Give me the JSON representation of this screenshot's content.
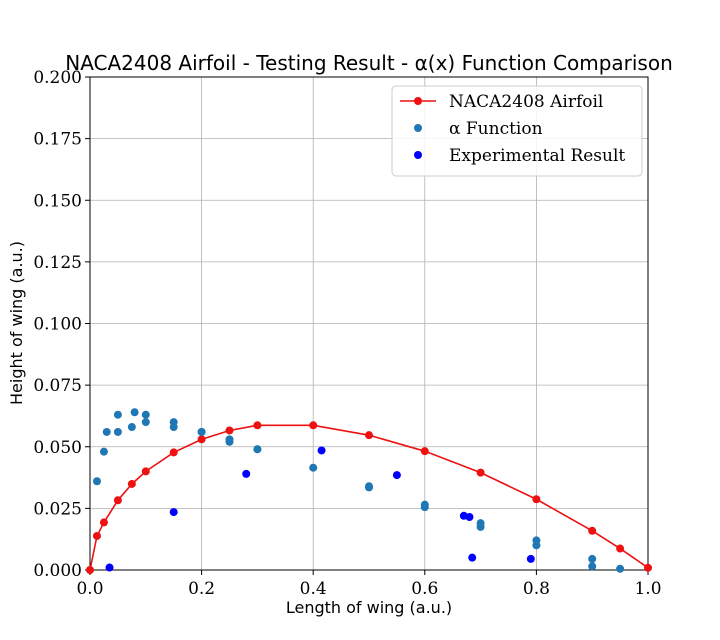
{
  "chart_data": {
    "type": "scatter",
    "title": "NACA2408 Airfoil - Testing Result - α(x) Function Comparison",
    "xlabel": "Length of wing (a.u.)",
    "ylabel": "Height of wing (a.u.)",
    "xlim": [
      0,
      1.0
    ],
    "ylim": [
      0,
      0.2
    ],
    "xticks": [
      "0.0",
      "0.2",
      "0.4",
      "0.6",
      "0.8",
      "1.0"
    ],
    "xtick_values": [
      0,
      0.2,
      0.4,
      0.6,
      0.8,
      1.0
    ],
    "yticks": [
      "0.000",
      "0.025",
      "0.050",
      "0.075",
      "0.100",
      "0.125",
      "0.150",
      "0.175",
      "0.200"
    ],
    "ytick_values": [
      0,
      0.025,
      0.05,
      0.075,
      0.1,
      0.125,
      0.15,
      0.175,
      0.2
    ],
    "grid": true,
    "legend_position": "top-right",
    "series": [
      {
        "name": "NACA2408 Airfoil",
        "type": "line",
        "marker": "circle",
        "color": "#ee1111",
        "x": [
          0,
          0.0125,
          0.025,
          0.05,
          0.075,
          0.1,
          0.15,
          0.2,
          0.25,
          0.3,
          0.4,
          0.5,
          0.6,
          0.7,
          0.8,
          0.9,
          0.95,
          1.0
        ],
        "y": [
          0,
          0.0138,
          0.0193,
          0.0283,
          0.0349,
          0.04,
          0.0477,
          0.053,
          0.0566,
          0.0587,
          0.0587,
          0.0547,
          0.0482,
          0.0395,
          0.0287,
          0.0159,
          0.0087,
          0.0009
        ]
      },
      {
        "name": "α Function",
        "type": "scatter",
        "color": "#1f77b4",
        "x": [
          0.0125,
          0.025,
          0.03,
          0.05,
          0.05,
          0.075,
          0.08,
          0.1,
          0.1,
          0.15,
          0.15,
          0.2,
          0.2,
          0.25,
          0.25,
          0.3,
          0.3,
          0.4,
          0.5,
          0.5,
          0.6,
          0.6,
          0.7,
          0.7,
          0.8,
          0.8,
          0.9,
          0.9,
          0.95
        ],
        "y": [
          0.036,
          0.048,
          0.056,
          0.056,
          0.063,
          0.058,
          0.064,
          0.06,
          0.063,
          0.058,
          0.06,
          0.056,
          0.056,
          0.053,
          0.052,
          0.049,
          0.049,
          0.0415,
          0.034,
          0.0335,
          0.0265,
          0.0255,
          0.019,
          0.0175,
          0.012,
          0.01,
          0.0045,
          0.0015,
          0.0005
        ]
      },
      {
        "name": "Experimental Result",
        "type": "scatter",
        "color": "#0000ff",
        "x": [
          0.035,
          0.15,
          0.28,
          0.415,
          0.55,
          0.67,
          0.68,
          0.685,
          0.79
        ],
        "y": [
          0.001,
          0.0235,
          0.039,
          0.0485,
          0.0385,
          0.022,
          0.0215,
          0.005,
          0.0045
        ]
      }
    ]
  }
}
